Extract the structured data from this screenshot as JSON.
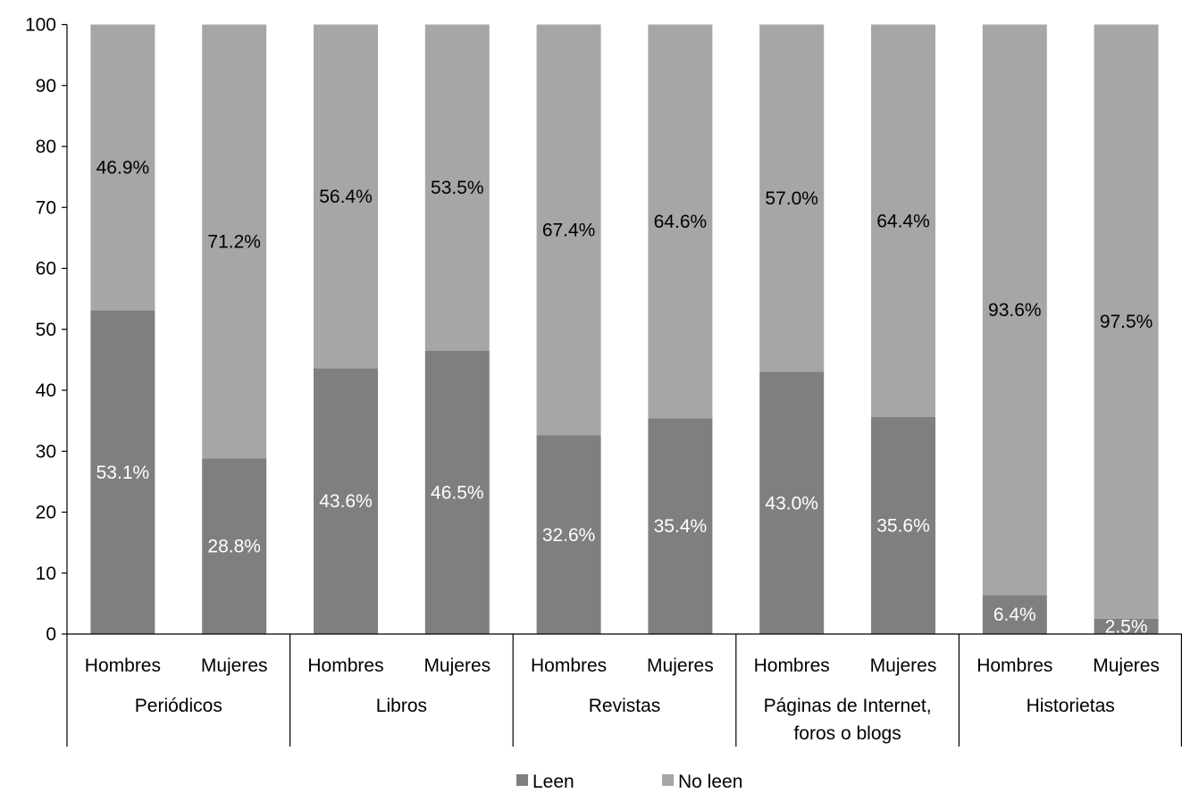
{
  "chart_data": {
    "type": "bar",
    "stacked": true,
    "groups": [
      "Periódicos",
      "Libros",
      "Revistas",
      "Páginas de Internet, foros o blogs",
      "Historietas"
    ],
    "subcategories": [
      "Hombres",
      "Mujeres"
    ],
    "series": [
      {
        "name": "Leen",
        "color": "#7f7f7f",
        "values": [
          53.1,
          28.8,
          43.6,
          46.5,
          32.6,
          35.4,
          43.0,
          35.6,
          6.4,
          2.5
        ],
        "labels": [
          "53.1%",
          "28.8%",
          "43.6%",
          "46.5%",
          "32.6%",
          "35.4%",
          "43.0%",
          "35.6%",
          "6.4%",
          "2.5%"
        ]
      },
      {
        "name": "No leen",
        "color": "#a6a6a6",
        "values": [
          46.9,
          71.2,
          56.4,
          53.5,
          67.4,
          64.6,
          57.0,
          64.4,
          93.6,
          97.5
        ],
        "labels": [
          "46.9%",
          "71.2%",
          "56.4%",
          "53.5%",
          "67.4%",
          "64.6%",
          "57.0%",
          "64.4%",
          "93.6%",
          "97.5%"
        ]
      }
    ],
    "ylim": [
      0,
      100
    ],
    "yticks": [
      "0",
      "10",
      "20",
      "30",
      "40",
      "50",
      "60",
      "70",
      "80",
      "90",
      "100"
    ],
    "legend": {
      "position": "bottom-center",
      "items": [
        "Leen",
        "No leen"
      ]
    },
    "grid": false,
    "title": "",
    "xlabel": "",
    "ylabel": ""
  }
}
